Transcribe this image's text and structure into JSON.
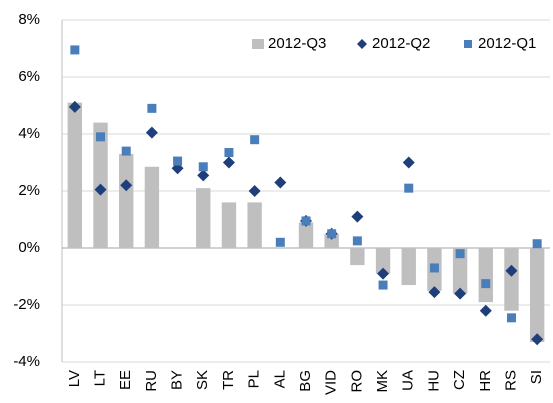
{
  "chart_data": {
    "type": "bar",
    "categories": [
      "LV",
      "LT",
      "EE",
      "RU",
      "BY",
      "SK",
      "TR",
      "PL",
      "AL",
      "BG",
      "VID",
      "RO",
      "MK",
      "UA",
      "HU",
      "CZ",
      "HR",
      "RS",
      "SI"
    ],
    "series": [
      {
        "name": "2012-Q3",
        "type": "bar",
        "color": "#bfbfbf",
        "values": [
          5.1,
          4.4,
          3.3,
          2.85,
          null,
          2.1,
          1.6,
          1.6,
          null,
          0.9,
          0.5,
          -0.6,
          -0.9,
          -1.3,
          -1.5,
          -1.6,
          -1.9,
          -2.2,
          -3.3
        ]
      },
      {
        "name": "2012-Q2",
        "type": "scatter",
        "marker": "diamond",
        "color": "#1f3f7a",
        "values": [
          4.95,
          2.05,
          2.2,
          4.05,
          2.8,
          2.55,
          3.0,
          2.0,
          2.3,
          0.95,
          0.5,
          1.1,
          -0.9,
          3.0,
          -1.55,
          -1.6,
          -2.2,
          -0.8,
          -3.2
        ]
      },
      {
        "name": "2012-Q1",
        "type": "scatter",
        "marker": "square",
        "color": "#4a7ebb",
        "values": [
          6.95,
          3.9,
          3.4,
          4.9,
          3.05,
          2.85,
          3.35,
          3.8,
          0.2,
          0.95,
          0.5,
          0.25,
          -1.3,
          2.1,
          -0.7,
          -0.2,
          -1.25,
          -2.45,
          0.15
        ]
      }
    ],
    "ylim": [
      -4,
      8
    ],
    "yticks": [
      {
        "value": -4,
        "label": "-4%"
      },
      {
        "value": -2,
        "label": "-2%"
      },
      {
        "value": 0,
        "label": "0%"
      },
      {
        "value": 2,
        "label": "2%"
      },
      {
        "value": 4,
        "label": "4%"
      },
      {
        "value": 6,
        "label": "6%"
      },
      {
        "value": 8,
        "label": "8%"
      }
    ],
    "grid": true,
    "legend": "top-right"
  }
}
